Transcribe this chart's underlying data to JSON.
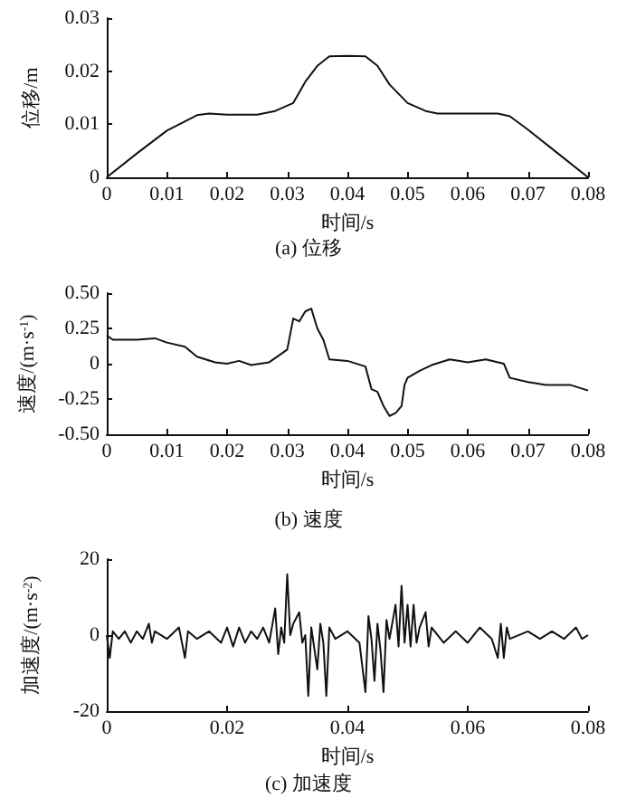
{
  "chart_data": [
    {
      "type": "line",
      "title": "(a) 位移",
      "xlabel": "时间/s",
      "ylabel": "位移/m",
      "color": "#111111",
      "marker": "none",
      "x": [
        0,
        0.005,
        0.01,
        0.015,
        0.017,
        0.02,
        0.025,
        0.028,
        0.031,
        0.033,
        0.035,
        0.037,
        0.04,
        0.043,
        0.045,
        0.047,
        0.05,
        0.053,
        0.055,
        0.06,
        0.065,
        0.067,
        0.07,
        0.075,
        0.08
      ],
      "values": [
        0,
        0.0045,
        0.0088,
        0.0117,
        0.012,
        0.0118,
        0.0118,
        0.0125,
        0.014,
        0.018,
        0.021,
        0.0228,
        0.0229,
        0.0228,
        0.021,
        0.0175,
        0.014,
        0.0125,
        0.012,
        0.012,
        0.012,
        0.0115,
        0.009,
        0.0045,
        0
      ],
      "xlim": [
        0,
        0.08
      ],
      "ylim": [
        0,
        0.03
      ],
      "xticks": [
        0,
        0.01,
        0.02,
        0.03,
        0.04,
        0.05,
        0.06,
        0.07,
        0.08
      ],
      "yticks": [
        0,
        0.01,
        0.02,
        0.03
      ]
    },
    {
      "type": "line",
      "title": "(b) 速度",
      "xlabel": "时间/s",
      "ylabel": "速度/(m·s$^{-1}$)",
      "color": "#111111",
      "marker": "none",
      "x": [
        0,
        0.001,
        0.005,
        0.008,
        0.01,
        0.013,
        0.015,
        0.018,
        0.02,
        0.022,
        0.024,
        0.027,
        0.029,
        0.03,
        0.031,
        0.032,
        0.033,
        0.034,
        0.035,
        0.036,
        0.037,
        0.04,
        0.043,
        0.044,
        0.045,
        0.046,
        0.047,
        0.048,
        0.049,
        0.0495,
        0.05,
        0.052,
        0.054,
        0.057,
        0.06,
        0.063,
        0.066,
        0.067,
        0.07,
        0.073,
        0.077,
        0.08
      ],
      "values": [
        0.2,
        0.17,
        0.17,
        0.18,
        0.15,
        0.12,
        0.05,
        0.01,
        0,
        0.02,
        -0.01,
        0.01,
        0.07,
        0.1,
        0.32,
        0.3,
        0.37,
        0.39,
        0.25,
        0.17,
        0.03,
        0.02,
        -0.02,
        -0.18,
        -0.2,
        -0.3,
        -0.37,
        -0.35,
        -0.3,
        -0.15,
        -0.1,
        -0.05,
        -0.01,
        0.03,
        0.01,
        0.03,
        0,
        -0.1,
        -0.13,
        -0.15,
        -0.15,
        -0.19
      ],
      "xlim": [
        0,
        0.08
      ],
      "ylim": [
        -0.5,
        0.5
      ],
      "xticks": [
        0,
        0.01,
        0.02,
        0.03,
        0.04,
        0.05,
        0.06,
        0.07,
        0.08
      ],
      "yticks": [
        {
          "value": -0.5,
          "label": "-0.50"
        },
        {
          "value": -0.25,
          "label": "-0.25"
        },
        0,
        {
          "value": 0.25,
          "label": "0.25"
        },
        {
          "value": 0.5,
          "label": "0.50"
        }
      ]
    },
    {
      "type": "line",
      "title": "(c) 加速度",
      "xlabel": "时间/s",
      "ylabel": "加速度/(m·s$^{-2}$)",
      "color": "#111111",
      "marker": "none",
      "x": [
        0,
        0.0005,
        0.001,
        0.002,
        0.003,
        0.004,
        0.005,
        0.006,
        0.007,
        0.0075,
        0.008,
        0.01,
        0.012,
        0.0125,
        0.013,
        0.0135,
        0.015,
        0.017,
        0.019,
        0.02,
        0.021,
        0.022,
        0.023,
        0.024,
        0.025,
        0.026,
        0.027,
        0.028,
        0.0285,
        0.029,
        0.0295,
        0.03,
        0.0305,
        0.031,
        0.032,
        0.0325,
        0.033,
        0.0335,
        0.034,
        0.035,
        0.0355,
        0.036,
        0.0365,
        0.037,
        0.038,
        0.04,
        0.042,
        0.043,
        0.0435,
        0.044,
        0.0445,
        0.045,
        0.0455,
        0.046,
        0.0465,
        0.047,
        0.048,
        0.0485,
        0.049,
        0.0495,
        0.05,
        0.0505,
        0.051,
        0.0515,
        0.052,
        0.053,
        0.0535,
        0.054,
        0.056,
        0.058,
        0.06,
        0.062,
        0.064,
        0.065,
        0.0655,
        0.066,
        0.0665,
        0.067,
        0.07,
        0.072,
        0.074,
        0.076,
        0.078,
        0.079,
        0.08
      ],
      "values": [
        0,
        -6,
        1,
        -1,
        1,
        -2,
        1,
        -1,
        3,
        -2,
        1,
        -1,
        2,
        -2,
        -6,
        1,
        -1,
        1,
        -2,
        2,
        -3,
        2,
        -2,
        1,
        -1,
        2,
        -2,
        7,
        -5,
        2,
        -2,
        16,
        0,
        3,
        6,
        -2,
        0,
        -16,
        2,
        -9,
        3,
        -2,
        -16,
        2,
        -1,
        1,
        -2,
        -15,
        5,
        -1,
        -12,
        3,
        -4,
        -15,
        4,
        -1,
        8,
        -3,
        13,
        -2,
        8,
        -3,
        8,
        -2,
        2,
        6,
        -3,
        2,
        -2,
        1,
        -2,
        2,
        -1,
        -6,
        3,
        -6,
        2,
        -1,
        1,
        -1,
        1,
        -1,
        2,
        -1,
        0
      ],
      "xlim": [
        0,
        0.08
      ],
      "ylim": [
        -20,
        20
      ],
      "xticks": [
        0,
        0.02,
        0.04,
        0.06,
        0.08
      ],
      "yticks": [
        -20,
        0,
        20
      ]
    }
  ]
}
